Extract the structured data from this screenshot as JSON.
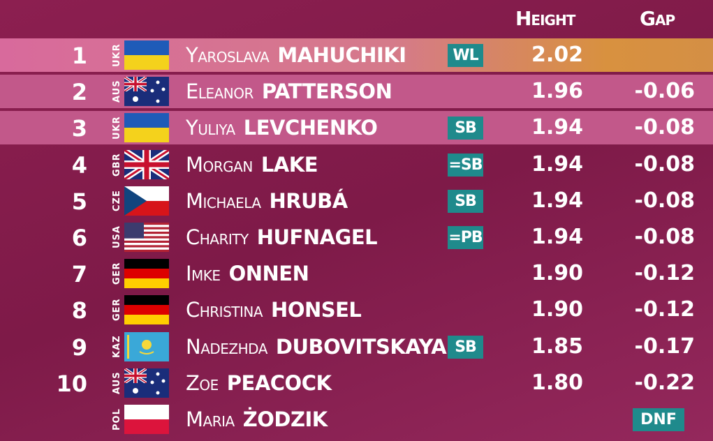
{
  "header": {
    "height": "Height",
    "gap": "Gap"
  },
  "rows": [
    {
      "rank": 1,
      "country": "UKR",
      "first": "Yaroslava",
      "last": "MAHUCHIKI",
      "note": "WL",
      "height": "2.02"
    },
    {
      "rank": 2,
      "country": "AUS",
      "first": "Eleanor",
      "last": "PATTERSON",
      "height": "1.96",
      "gap": "-0.06"
    },
    {
      "rank": 3,
      "country": "UKR",
      "first": "Yuliya",
      "last": "LEVCHENKO",
      "note": "SB",
      "height": "1.94",
      "gap": "-0.08"
    },
    {
      "rank": 4,
      "country": "GBR",
      "first": "Morgan",
      "last": "LAKE",
      "note": "=SB",
      "height": "1.94",
      "gap": "-0.08"
    },
    {
      "rank": 5,
      "country": "CZE",
      "first": "Michaela",
      "last": "HRUBÁ",
      "note": "SB",
      "height": "1.94",
      "gap": "-0.08"
    },
    {
      "rank": 6,
      "country": "USA",
      "first": "Charity",
      "last": "HUFNAGEL",
      "note": "=PB",
      "height": "1.94",
      "gap": "-0.08"
    },
    {
      "rank": 7,
      "country": "GER",
      "first": "Imke",
      "last": "ONNEN",
      "height": "1.90",
      "gap": "-0.12"
    },
    {
      "rank": 8,
      "country": "GER",
      "first": "Christina",
      "last": "HONSEL",
      "height": "1.90",
      "gap": "-0.12"
    },
    {
      "rank": 9,
      "country": "KAZ",
      "first": "Nadezhda",
      "last": "DUBOVITSKAYA",
      "note": "SB",
      "height": "1.85",
      "gap": "-0.17"
    },
    {
      "rank": 10,
      "country": "AUS",
      "first": "Zoe",
      "last": "PEACOCK",
      "height": "1.80",
      "gap": "-0.22"
    },
    {
      "country": "POL",
      "first": "Maria",
      "last": "ŻODZIK",
      "status": "DNF"
    }
  ]
}
